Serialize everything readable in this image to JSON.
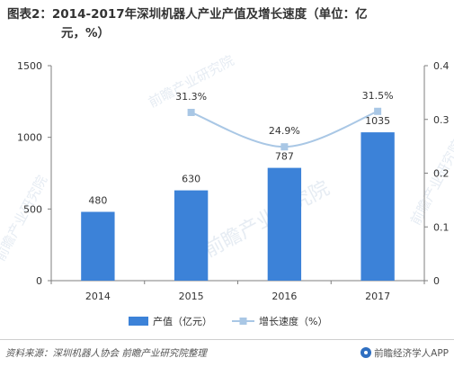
{
  "title_line1": "图表2：2014-2017年深圳机器人产业产值及增长速度（单位：亿",
  "title_line2": "元，%）",
  "watermark_text": "前瞻产业研究院",
  "footer": {
    "source": "资料来源：深圳机器人协会 前瞻产业研究院整理",
    "brand": "前瞻经济学人APP"
  },
  "colors": {
    "bar": "#3c82d8",
    "line": "#a9c7e5",
    "marker": "#a9c7e5",
    "axis": "#7f7f7f",
    "text": "#333333",
    "watermark": "#e6ecf3"
  },
  "chart_data": {
    "type": "bar",
    "categories": [
      "2014",
      "2015",
      "2016",
      "2017"
    ],
    "series": [
      {
        "name": "产值（亿元）",
        "type": "bar",
        "axis": "left",
        "values": [
          480,
          630,
          787,
          1035
        ],
        "labels": [
          "480",
          "630",
          "787",
          "1035"
        ]
      },
      {
        "name": "增长速度（%）",
        "type": "line",
        "axis": "right",
        "values": [
          null,
          0.313,
          0.249,
          0.315
        ],
        "labels": [
          "",
          "31.3%",
          "24.9%",
          "31.5%"
        ]
      }
    ],
    "y_left": {
      "min": 0,
      "max": 1500,
      "ticks": [
        "0",
        "500",
        "1000",
        "1500"
      ]
    },
    "y_right": {
      "min": 0,
      "max": 0.4,
      "ticks": [
        "0",
        "0.1",
        "0.2",
        "0.3",
        "0.4"
      ]
    },
    "grid": false,
    "legend_position": "bottom"
  }
}
